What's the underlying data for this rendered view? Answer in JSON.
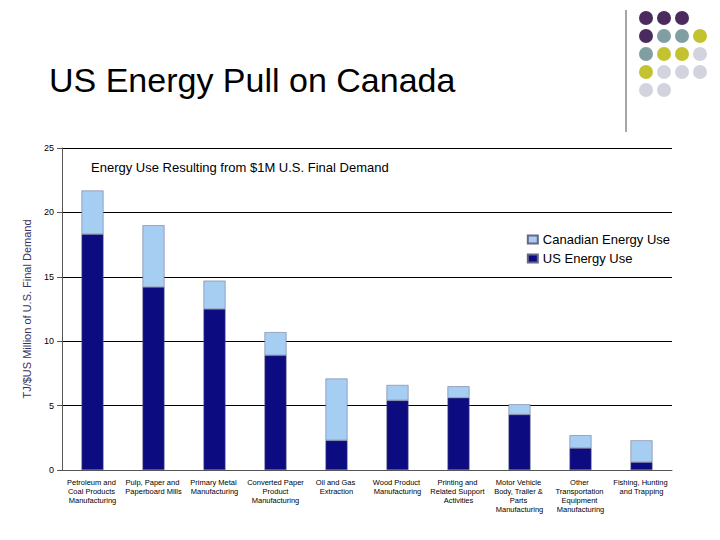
{
  "slide_title": "US Energy Pull on Canada",
  "chart_data": {
    "type": "bar",
    "title": "Energy Use Resulting from $1M U.S. Final Demand",
    "y_label": "TJ/$US Million of U.S. Final Demand",
    "categories": [
      "Petroleum and Coal Products Manufacturing",
      "Pulp, Paper and Paperboard Mills",
      "Primary Metal Manufacturing",
      "Converted Paper Product Manufacturing",
      "Oil and Gas Extraction",
      "Wood Product Manufacturing",
      "Printing and Related Support Activities",
      "Motor Vehicle Body, Trailer & Parts Manufacturing",
      "Other Transportation Equipment Manufacturing",
      "Fishing, Hunting and Trapping"
    ],
    "series": [
      {
        "name": "US Energy Use",
        "color": "#0c0c80",
        "values": [
          18.3,
          14.2,
          12.5,
          8.9,
          2.3,
          5.4,
          5.6,
          4.3,
          1.7,
          0.6
        ]
      },
      {
        "name": "Canadian Energy Use",
        "color": "#a6cdf2",
        "values": [
          3.4,
          4.8,
          2.2,
          1.8,
          4.8,
          1.2,
          0.9,
          0.8,
          1.0,
          1.7
        ]
      }
    ],
    "stacked": true,
    "ylim": [
      0,
      25
    ],
    "yticks": [
      0,
      5,
      10,
      15,
      20,
      25
    ],
    "grid": true,
    "legend": "upper right"
  }
}
